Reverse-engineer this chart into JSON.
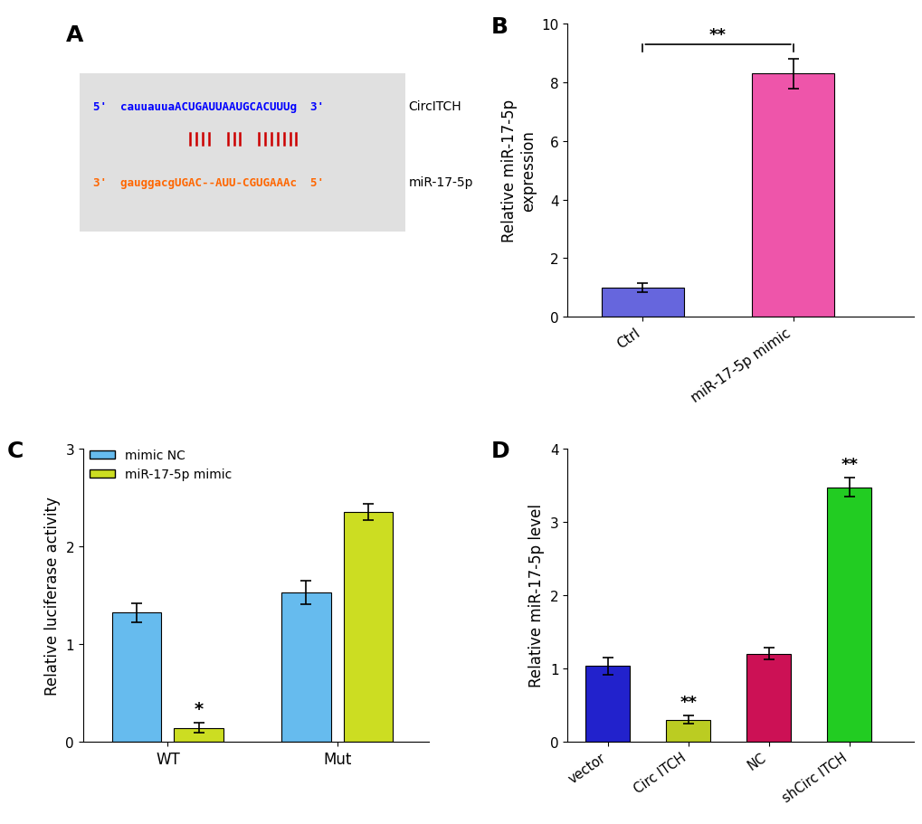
{
  "panel_A": {
    "seq_top": "5'  cauuauuaACUGAUUAAUGCACUUUg  3'",
    "seq_bot": "3'  gauggacgUGAC--AUU-CGUGAAAc  5'",
    "label_top": "CircITCH",
    "label_bot": "miR-17-5p",
    "color_top": "#0000FF",
    "color_bot": "#FF6600",
    "color_bars": "#CC0000",
    "bg_color": "#E0E0E0"
  },
  "panel_B": {
    "categories": [
      "Ctrl",
      "miR-17-5p mimic"
    ],
    "values": [
      1.0,
      8.3
    ],
    "errors": [
      0.15,
      0.5
    ],
    "colors": [
      "#6666DD",
      "#EE55AA"
    ],
    "ylabel": "Relative miR-17-5p\nexpression",
    "ylim": [
      0,
      10
    ],
    "yticks": [
      0,
      2,
      4,
      6,
      8,
      10
    ],
    "significance": "**"
  },
  "panel_C": {
    "groups": [
      "WT",
      "Mut"
    ],
    "bar1_values": [
      1.32,
      1.53
    ],
    "bar1_errors": [
      0.1,
      0.12
    ],
    "bar2_values": [
      0.14,
      2.35
    ],
    "bar2_errors": [
      0.05,
      0.08
    ],
    "bar1_color": "#66BBEE",
    "bar2_color": "#CCDD22",
    "legend_labels": [
      "mimic NC",
      "miR-17-5p mimic"
    ],
    "ylabel": "Relative luciferase activity",
    "ylim": [
      0,
      3
    ],
    "yticks": [
      0,
      1,
      2,
      3
    ],
    "significance_wt": "*"
  },
  "panel_D": {
    "categories": [
      "vector",
      "Circ ITCH",
      "NC",
      "shCirc ITCH"
    ],
    "values": [
      1.03,
      0.3,
      1.2,
      3.47
    ],
    "errors": [
      0.12,
      0.05,
      0.08,
      0.13
    ],
    "colors": [
      "#2222CC",
      "#BBCC22",
      "#CC1155",
      "#22CC22"
    ],
    "ylabel": "Relative miR-17-5p level",
    "ylim": [
      0,
      4
    ],
    "yticks": [
      0,
      1,
      2,
      3,
      4
    ],
    "significance": "**"
  },
  "panel_labels": [
    "A",
    "B",
    "C",
    "D"
  ],
  "label_fontsize": 18,
  "tick_fontsize": 11,
  "axis_label_fontsize": 12
}
